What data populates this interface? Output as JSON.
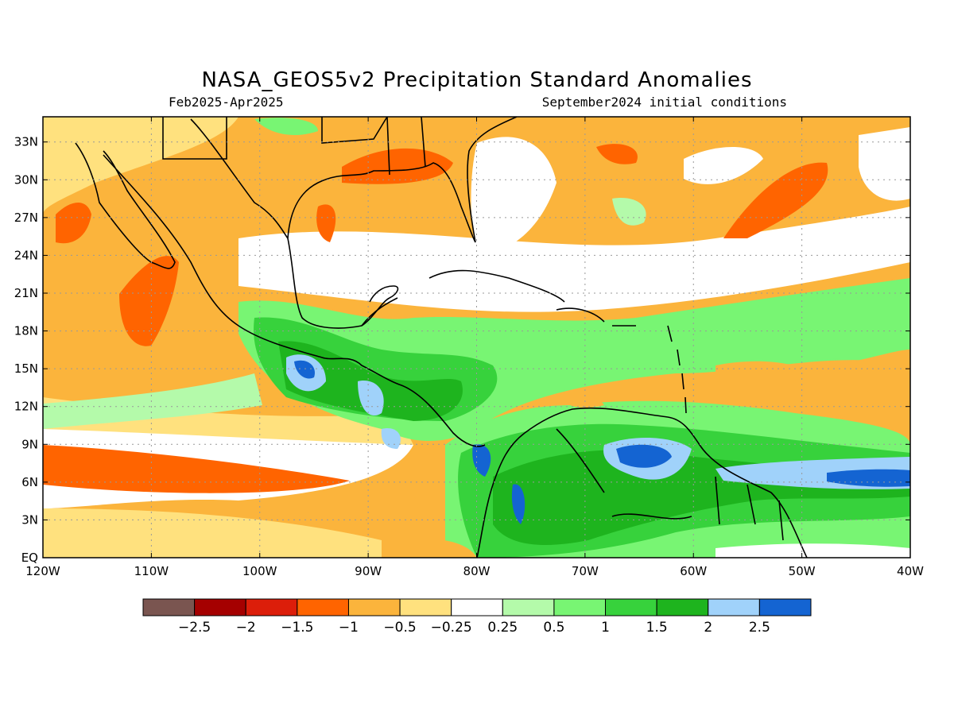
{
  "map": {
    "title": "NASA_GEOS5v2 Precipitation Standard Anomalies",
    "period": "Feb2025-Apr2025",
    "init": "September2024 initial conditions",
    "lat_labels": [
      "33N",
      "30N",
      "27N",
      "24N",
      "21N",
      "18N",
      "15N",
      "12N",
      "9N",
      "6N",
      "3N",
      "EQ"
    ],
    "lon_labels": [
      "120W",
      "110W",
      "100W",
      "90W",
      "80W",
      "70W",
      "60W",
      "50W",
      "40W"
    ],
    "extent": {
      "lon": [
        -120,
        -40
      ],
      "lat": [
        0,
        35
      ]
    },
    "grid": true
  },
  "colorbar": {
    "colors": [
      "#7a5550",
      "#a50000",
      "#dc1e0a",
      "#ff6400",
      "#fbb43c",
      "#ffe17e",
      "#ffffff",
      "#b4faaa",
      "#78f573",
      "#37d23c",
      "#1eb41e",
      "#a0d2fa",
      "#1464d2"
    ],
    "labels": [
      "-2.5",
      "-2",
      "-1.5",
      "-1",
      "-0.5",
      "-0.25",
      "0.25",
      "0.5",
      "1",
      "1.5",
      "2",
      "2.5"
    ]
  }
}
